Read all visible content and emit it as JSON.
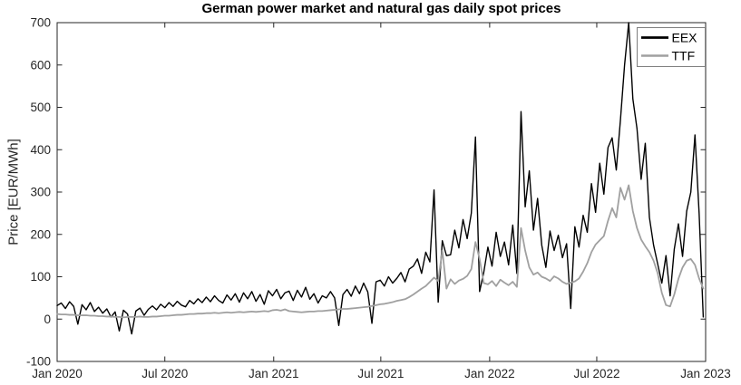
{
  "figure": {
    "title": "German power market and natural gas daily spot prices",
    "ylabel": "Price [EUR/MWh]",
    "background": "#ffffff"
  },
  "chart_data": {
    "type": "line",
    "title": "German power market and natural gas daily spot prices",
    "xlabel": "",
    "ylabel": "Price [EUR/MWh]",
    "grid": false,
    "axis_color": "#262626",
    "tick_color": "#262626",
    "title_color": "#000000",
    "xlim": [
      0,
      1096
    ],
    "ylim": [
      -100,
      700
    ],
    "x_unit": "days since Jan 1 2020, weekly samples",
    "x_step_days": 7,
    "x_tick_days": [
      0,
      182,
      366,
      547,
      731,
      912,
      1096
    ],
    "x_tick_labels": [
      "Jan 2020",
      "Jul 2020",
      "Jan 2021",
      "Jul 2021",
      "Jan 2022",
      "Jul 2022",
      "Jan 2023"
    ],
    "y_ticks": [
      -100,
      0,
      100,
      200,
      300,
      400,
      500,
      600,
      700
    ],
    "legend": {
      "position": "top-right",
      "border_color": "#7f7f7f",
      "fill": "#ffffff"
    },
    "series": [
      {
        "name": "EEX",
        "color": "#000000",
        "line_width": 1.4,
        "legend_line_width": 2.8,
        "values": [
          32,
          38,
          25,
          41,
          30,
          -12,
          34,
          22,
          39,
          18,
          28,
          14,
          24,
          5,
          17,
          -28,
          21,
          12,
          -35,
          19,
          26,
          9,
          23,
          31,
          22,
          35,
          27,
          39,
          30,
          42,
          33,
          29,
          44,
          36,
          48,
          39,
          52,
          41,
          55,
          44,
          38,
          57,
          45,
          60,
          40,
          62,
          48,
          65,
          42,
          58,
          35,
          67,
          55,
          70,
          48,
          62,
          66,
          44,
          68,
          52,
          75,
          47,
          60,
          38,
          55,
          50,
          65,
          50,
          -15,
          58,
          70,
          54,
          78,
          60,
          85,
          64,
          -10,
          88,
          92,
          78,
          100,
          85,
          96,
          110,
          88,
          118,
          125,
          142,
          108,
          158,
          135,
          305,
          40,
          185,
          150,
          152,
          210,
          168,
          235,
          190,
          250,
          430,
          65,
          110,
          170,
          125,
          205,
          148,
          182,
          128,
          222,
          108,
          490,
          265,
          350,
          210,
          285,
          175,
          122,
          208,
          162,
          198,
          145,
          178,
          25,
          218,
          170,
          245,
          205,
          320,
          252,
          368,
          295,
          405,
          428,
          352,
          470,
          600,
          700,
          520,
          450,
          330,
          415,
          240,
          175,
          130,
          85,
          150,
          55,
          165,
          225,
          148,
          255,
          300,
          435,
          250,
          5
        ]
      },
      {
        "name": "TTF",
        "color": "#a0a0a0",
        "line_width": 1.8,
        "legend_line_width": 2.4,
        "values": [
          12,
          11,
          11,
          10,
          10,
          9,
          9,
          9,
          8,
          8,
          7,
          7,
          6,
          6,
          5,
          5,
          4,
          5,
          5,
          5,
          6,
          5,
          5,
          6,
          6,
          7,
          8,
          8,
          9,
          10,
          10,
          11,
          12,
          12,
          13,
          13,
          14,
          14,
          15,
          14,
          15,
          16,
          15,
          16,
          17,
          16,
          17,
          18,
          17,
          18,
          19,
          18,
          21,
          22,
          20,
          23,
          19,
          18,
          17,
          16,
          17,
          18,
          18,
          19,
          19,
          20,
          21,
          22,
          23,
          24,
          24,
          25,
          26,
          27,
          28,
          29,
          31,
          33,
          35,
          36,
          38,
          40,
          43,
          45,
          47,
          52,
          58,
          65,
          72,
          78,
          88,
          98,
          90,
          162,
          72,
          94,
          83,
          91,
          95,
          102,
          118,
          182,
          142,
          85,
          82,
          90,
          78,
          93,
          86,
          80,
          88,
          76,
          215,
          162,
          122,
          105,
          110,
          100,
          96,
          90,
          101,
          96,
          88,
          83,
          86,
          89,
          96,
          112,
          132,
          158,
          176,
          186,
          196,
          232,
          262,
          240,
          310,
          282,
          316,
          255,
          215,
          188,
          172,
          158,
          138,
          108,
          62,
          33,
          30,
          58,
          95,
          122,
          138,
          142,
          128,
          96,
          72
        ]
      }
    ]
  }
}
